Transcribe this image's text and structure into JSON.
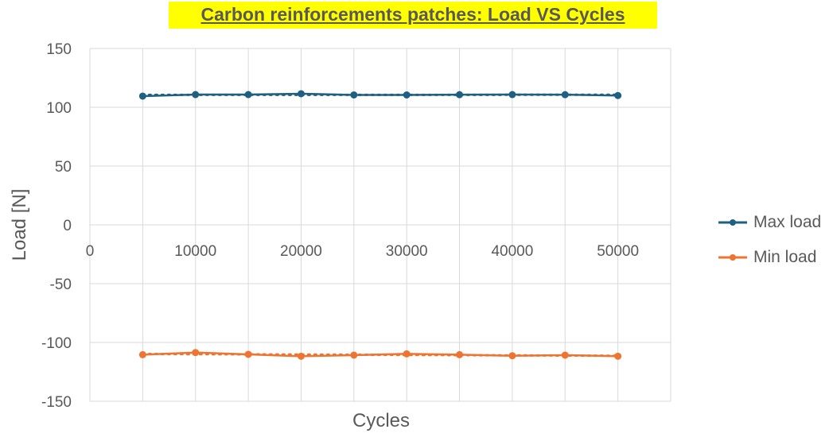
{
  "chart_data": {
    "type": "line",
    "title": "Carbon reinforcements patches: Load VS Cycles",
    "xlabel": "Cycles",
    "ylabel": "Load [N]",
    "xlim": [
      0,
      55000
    ],
    "ylim": [
      -150,
      150
    ],
    "xticks": [
      0,
      10000,
      20000,
      30000,
      40000,
      50000
    ],
    "yticks": [
      150,
      100,
      50,
      0,
      -50,
      -100,
      -150
    ],
    "grid": true,
    "legend": "right",
    "trendline": "linear dotted",
    "x": [
      5000,
      10000,
      15000,
      20000,
      25000,
      30000,
      35000,
      40000,
      45000,
      50000
    ],
    "series": [
      {
        "name": "Max load",
        "color": "#1f5f82",
        "values": [
          109.5,
          110.8,
          110.8,
          111.5,
          110.5,
          110.5,
          110.7,
          110.8,
          110.7,
          110.0
        ]
      },
      {
        "name": "Min load",
        "color": "#ed7431",
        "values": [
          -110.4,
          -108.6,
          -110.1,
          -111.7,
          -110.8,
          -109.7,
          -110.4,
          -111.3,
          -110.8,
          -111.7
        ]
      }
    ]
  }
}
